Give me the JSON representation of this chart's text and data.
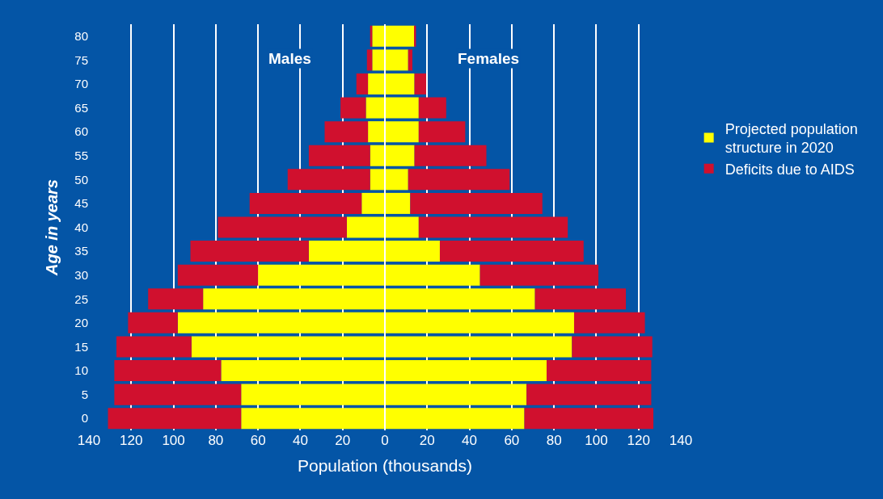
{
  "chart_data": {
    "type": "bar",
    "orientation": "horizontal",
    "stacked": true,
    "xlabel": "Population (thousands)",
    "ylabel": "Age in years",
    "annotations": [
      "Males",
      "Females"
    ],
    "categories": [
      "80",
      "75",
      "70",
      "65",
      "60",
      "55",
      "50",
      "45",
      "40",
      "35",
      "30",
      "25",
      "20",
      "15",
      "10",
      "5",
      "0"
    ],
    "series": [
      {
        "color": "#ffff00",
        "values": [
          -6,
          -6,
          -8,
          -9,
          -8,
          -7,
          -7,
          -11,
          -18,
          -36,
          -60,
          -86,
          -98,
          -91.5,
          -77.5,
          -68,
          -68
        ]
      },
      {
        "color": "#d0102e",
        "values": [
          -1,
          -2.5,
          -5.5,
          -12,
          -20.5,
          -29,
          -39,
          -53,
          -61,
          -56,
          -38,
          -26,
          -23.5,
          -35.5,
          -50.5,
          -60,
          -63
        ]
      },
      {
        "name": "Projected population structure in 2020",
        "color": "#ffff00",
        "values": [
          14,
          11,
          14,
          16,
          16,
          14,
          11,
          12,
          16,
          26,
          45,
          71,
          89.5,
          88.5,
          76.5,
          67,
          66
        ]
      },
      {
        "name": "Deficits due to AIDS",
        "color": "#d0102e",
        "values": [
          0.7,
          2,
          5.5,
          13,
          22,
          34,
          48,
          62.5,
          70.5,
          68,
          56,
          43,
          33.5,
          38,
          49.5,
          59,
          61
        ]
      }
    ],
    "xlim": [
      -140,
      140
    ],
    "xticks": [
      {
        "value": -140,
        "label": "140"
      },
      {
        "value": -120,
        "label": "120"
      },
      {
        "value": -100,
        "label": "100"
      },
      {
        "value": -80,
        "label": "80"
      },
      {
        "value": -60,
        "label": "60"
      },
      {
        "value": -40,
        "label": "40"
      },
      {
        "value": -20,
        "label": "20"
      },
      0,
      20,
      40,
      60,
      80,
      100,
      120,
      140
    ],
    "grid": "x",
    "legend": "right"
  }
}
